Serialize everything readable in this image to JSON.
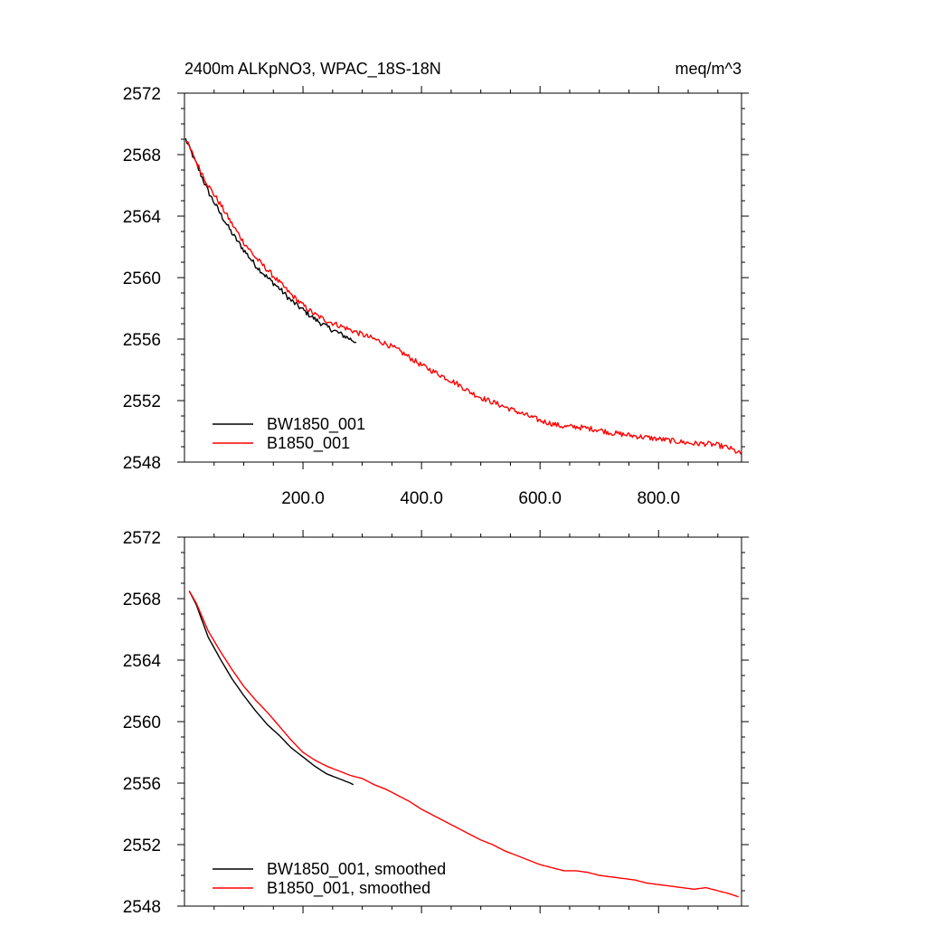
{
  "chart_data": [
    {
      "type": "line",
      "title": "2400m ALKpNO3, WPAC_18S-18N",
      "units": "meq/m^3",
      "xlim": [
        0,
        940
      ],
      "ylim": [
        2548,
        2572
      ],
      "x_ticks": [
        200,
        400,
        600,
        800
      ],
      "x_tick_labels": [
        "200.0",
        "400.0",
        "600.0",
        "800.0"
      ],
      "y_ticks": [
        2548,
        2552,
        2556,
        2560,
        2564,
        2568,
        2572
      ],
      "y_tick_labels": [
        "2548",
        "2552",
        "2556",
        "2560",
        "2564",
        "2568",
        "2572"
      ],
      "legend_position": "bottom-left",
      "series": [
        {
          "name": "BW1850_001",
          "color": "#000000",
          "x": [
            2,
            20,
            40,
            60,
            80,
            100,
            120,
            140,
            160,
            180,
            200,
            220,
            240,
            260,
            280,
            290
          ],
          "values": [
            2569.0,
            2567.4,
            2565.6,
            2564.2,
            2562.9,
            2561.8,
            2560.8,
            2560.0,
            2559.3,
            2558.5,
            2557.9,
            2557.3,
            2556.8,
            2556.4,
            2556.0,
            2555.8
          ]
        },
        {
          "name": "B1850_001",
          "color": "#ff0000",
          "x": [
            2,
            20,
            40,
            60,
            80,
            100,
            120,
            140,
            160,
            180,
            200,
            220,
            240,
            260,
            280,
            300,
            320,
            340,
            360,
            380,
            400,
            420,
            440,
            460,
            480,
            500,
            520,
            540,
            560,
            580,
            600,
            620,
            640,
            660,
            680,
            700,
            720,
            740,
            760,
            780,
            800,
            820,
            840,
            860,
            880,
            900,
            920,
            940
          ],
          "values": [
            2569.0,
            2567.5,
            2566.0,
            2564.8,
            2563.5,
            2562.3,
            2561.3,
            2560.5,
            2559.7,
            2558.9,
            2558.2,
            2557.6,
            2557.2,
            2556.9,
            2556.6,
            2556.3,
            2556.0,
            2555.7,
            2555.3,
            2554.8,
            2554.3,
            2553.9,
            2553.5,
            2553.1,
            2552.6,
            2552.2,
            2551.9,
            2551.6,
            2551.3,
            2551.0,
            2550.7,
            2550.5,
            2550.3,
            2550.3,
            2550.2,
            2550.1,
            2549.9,
            2549.8,
            2549.7,
            2549.6,
            2549.5,
            2549.4,
            2549.3,
            2549.2,
            2549.2,
            2549.1,
            2548.9,
            2548.5
          ]
        }
      ]
    },
    {
      "type": "line",
      "xlim": [
        0,
        940
      ],
      "ylim": [
        2548,
        2572
      ],
      "y_ticks": [
        2548,
        2552,
        2556,
        2560,
        2564,
        2568,
        2572
      ],
      "y_tick_labels": [
        "2548",
        "2552",
        "2556",
        "2560",
        "2564",
        "2568",
        "2572"
      ],
      "legend_position": "bottom-left",
      "series": [
        {
          "name": "BW1850_001, smoothed",
          "color": "#000000",
          "x": [
            8,
            20,
            40,
            60,
            80,
            100,
            120,
            140,
            160,
            180,
            200,
            220,
            240,
            260,
            280,
            285
          ],
          "values": [
            2568.5,
            2567.6,
            2565.5,
            2564.1,
            2562.8,
            2561.7,
            2560.7,
            2559.8,
            2559.1,
            2558.3,
            2557.7,
            2557.1,
            2556.6,
            2556.3,
            2556.0,
            2555.9
          ]
        },
        {
          "name": "B1850_001, smoothed",
          "color": "#ff0000",
          "x": [
            8,
            20,
            40,
            60,
            80,
            100,
            120,
            140,
            160,
            180,
            200,
            220,
            240,
            260,
            280,
            300,
            320,
            340,
            360,
            380,
            400,
            420,
            440,
            460,
            480,
            500,
            520,
            540,
            560,
            580,
            600,
            620,
            640,
            660,
            680,
            700,
            720,
            740,
            760,
            780,
            800,
            820,
            840,
            860,
            880,
            900,
            920,
            935
          ],
          "values": [
            2568.5,
            2567.7,
            2565.9,
            2564.6,
            2563.4,
            2562.3,
            2561.4,
            2560.6,
            2559.7,
            2558.8,
            2558.0,
            2557.5,
            2557.1,
            2556.8,
            2556.5,
            2556.3,
            2555.9,
            2555.6,
            2555.2,
            2554.8,
            2554.3,
            2553.9,
            2553.5,
            2553.1,
            2552.7,
            2552.3,
            2552.0,
            2551.6,
            2551.3,
            2551.0,
            2550.7,
            2550.5,
            2550.3,
            2550.3,
            2550.2,
            2550.0,
            2549.9,
            2549.8,
            2549.7,
            2549.5,
            2549.4,
            2549.3,
            2549.2,
            2549.1,
            2549.2,
            2549.0,
            2548.8,
            2548.6
          ]
        }
      ]
    }
  ]
}
